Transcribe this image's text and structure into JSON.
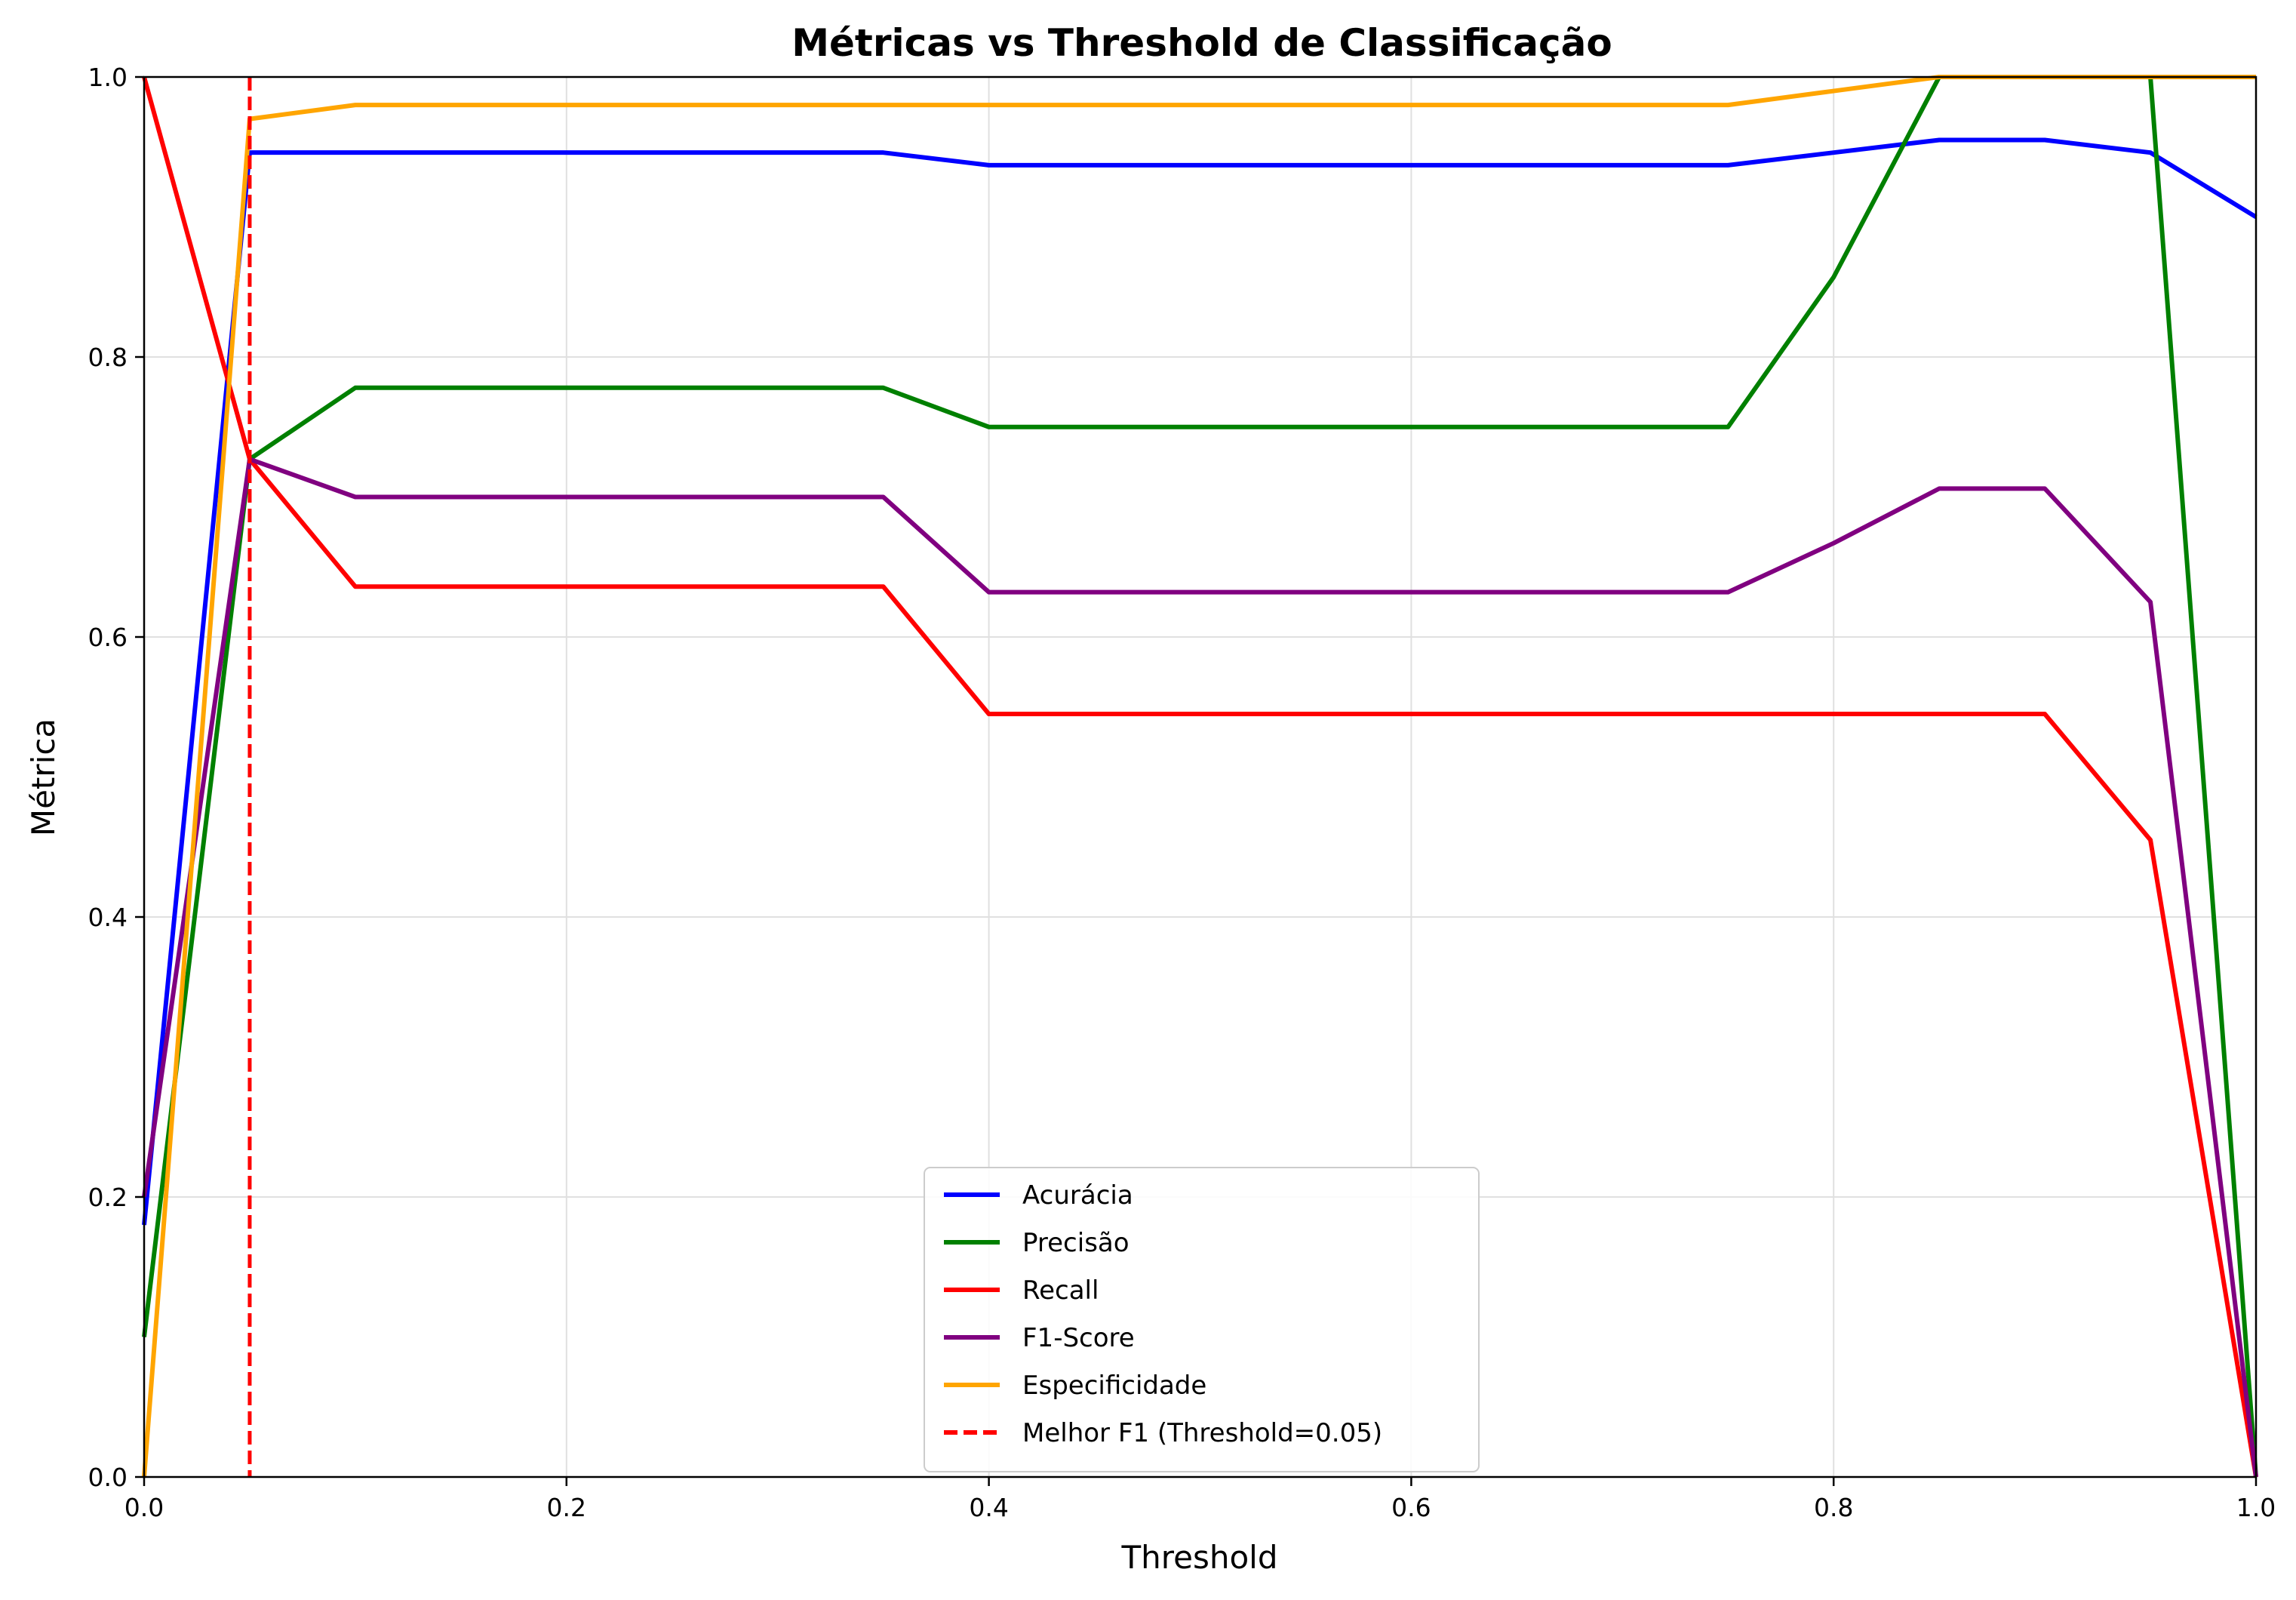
{
  "chart_data": {
    "type": "line",
    "title": "Métricas vs Threshold de Classificação",
    "xlabel": "Threshold",
    "ylabel": "Métrica",
    "xlim": [
      0,
      1
    ],
    "ylim": [
      0,
      1
    ],
    "grid": true,
    "legend_position": "bottom-center",
    "x_ticks": [
      "0.0",
      "0.2",
      "0.4",
      "0.6",
      "0.8",
      "1.0"
    ],
    "y_ticks": [
      "0.0",
      "0.2",
      "0.4",
      "0.6",
      "0.8",
      "1.0"
    ],
    "x": [
      0.0,
      0.05,
      0.1,
      0.15,
      0.2,
      0.25,
      0.3,
      0.35,
      0.4,
      0.45,
      0.5,
      0.55,
      0.6,
      0.65,
      0.7,
      0.75,
      0.8,
      0.85,
      0.9,
      0.95,
      1.0
    ],
    "series": [
      {
        "name": "Acurácia",
        "color": "#0000ff",
        "values": [
          0.18,
          0.946,
          0.946,
          0.946,
          0.946,
          0.946,
          0.946,
          0.946,
          0.937,
          0.937,
          0.937,
          0.937,
          0.937,
          0.937,
          0.937,
          0.937,
          0.946,
          0.955,
          0.955,
          0.946,
          0.9
        ]
      },
      {
        "name": "Precisão",
        "color": "#008000",
        "values": [
          0.1,
          0.727,
          0.778,
          0.778,
          0.778,
          0.778,
          0.778,
          0.778,
          0.75,
          0.75,
          0.75,
          0.75,
          0.75,
          0.75,
          0.75,
          0.75,
          0.857,
          1.0,
          1.0,
          1.0,
          0.0
        ]
      },
      {
        "name": "Recall",
        "color": "#ff0000",
        "values": [
          1.0,
          0.727,
          0.636,
          0.636,
          0.636,
          0.636,
          0.636,
          0.636,
          0.545,
          0.545,
          0.545,
          0.545,
          0.545,
          0.545,
          0.545,
          0.545,
          0.545,
          0.545,
          0.545,
          0.455,
          0.0
        ]
      },
      {
        "name": "F1-Score",
        "color": "#800080",
        "values": [
          0.2,
          0.727,
          0.7,
          0.7,
          0.7,
          0.7,
          0.7,
          0.7,
          0.632,
          0.632,
          0.632,
          0.632,
          0.632,
          0.632,
          0.632,
          0.632,
          0.667,
          0.706,
          0.706,
          0.625,
          0.0
        ]
      },
      {
        "name": "Especificidade",
        "color": "#ffa500",
        "values": [
          0.0,
          0.97,
          0.98,
          0.98,
          0.98,
          0.98,
          0.98,
          0.98,
          0.98,
          0.98,
          0.98,
          0.98,
          0.98,
          0.98,
          0.98,
          0.98,
          0.99,
          1.0,
          1.0,
          1.0,
          1.0
        ]
      }
    ],
    "reference_line": {
      "name": "Melhor F1 (Threshold=0.05)",
      "x": 0.05,
      "color": "#ff0000",
      "style": "dashed"
    }
  }
}
